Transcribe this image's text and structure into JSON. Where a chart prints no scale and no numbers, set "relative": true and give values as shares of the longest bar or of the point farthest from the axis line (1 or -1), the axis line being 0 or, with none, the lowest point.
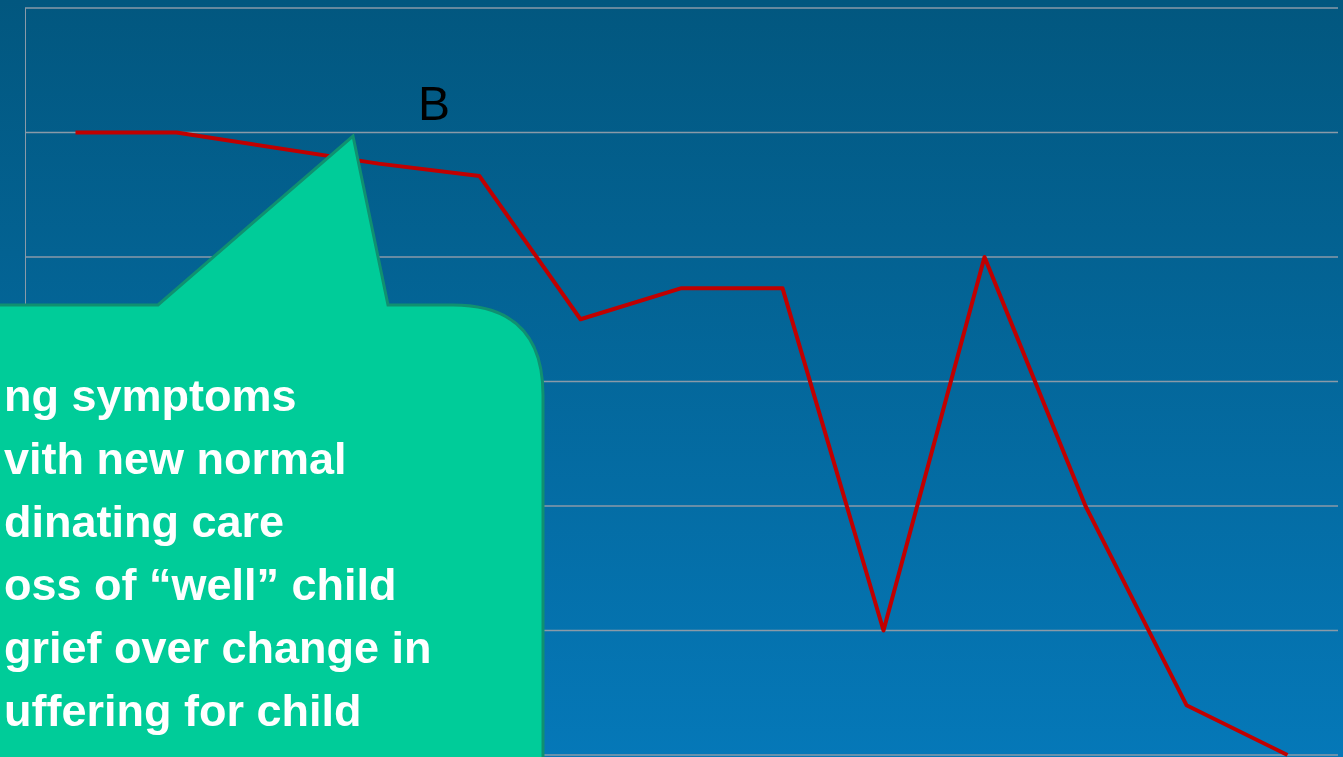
{
  "chart_data": {
    "type": "line",
    "relative": true,
    "categories": [
      null,
      null,
      null,
      null,
      null,
      null,
      null,
      null,
      null,
      null,
      null,
      null,
      null
    ],
    "series": [
      {
        "color": "#c00000",
        "values": [
          1,
          1,
          null,
          0.95,
          0.93,
          0.7,
          0.75,
          0.75,
          0.2,
          0.8,
          0.4,
          0.08,
          0
        ]
      }
    ],
    "grid": "y",
    "marker": "none",
    "line_style": "solid",
    "legend": false,
    "annotations": [
      "B",
      "ng symptoms",
      "vith new normal",
      "dinating care",
      "oss of “well” child",
      "grief over change in",
      "uffering for child"
    ]
  }
}
